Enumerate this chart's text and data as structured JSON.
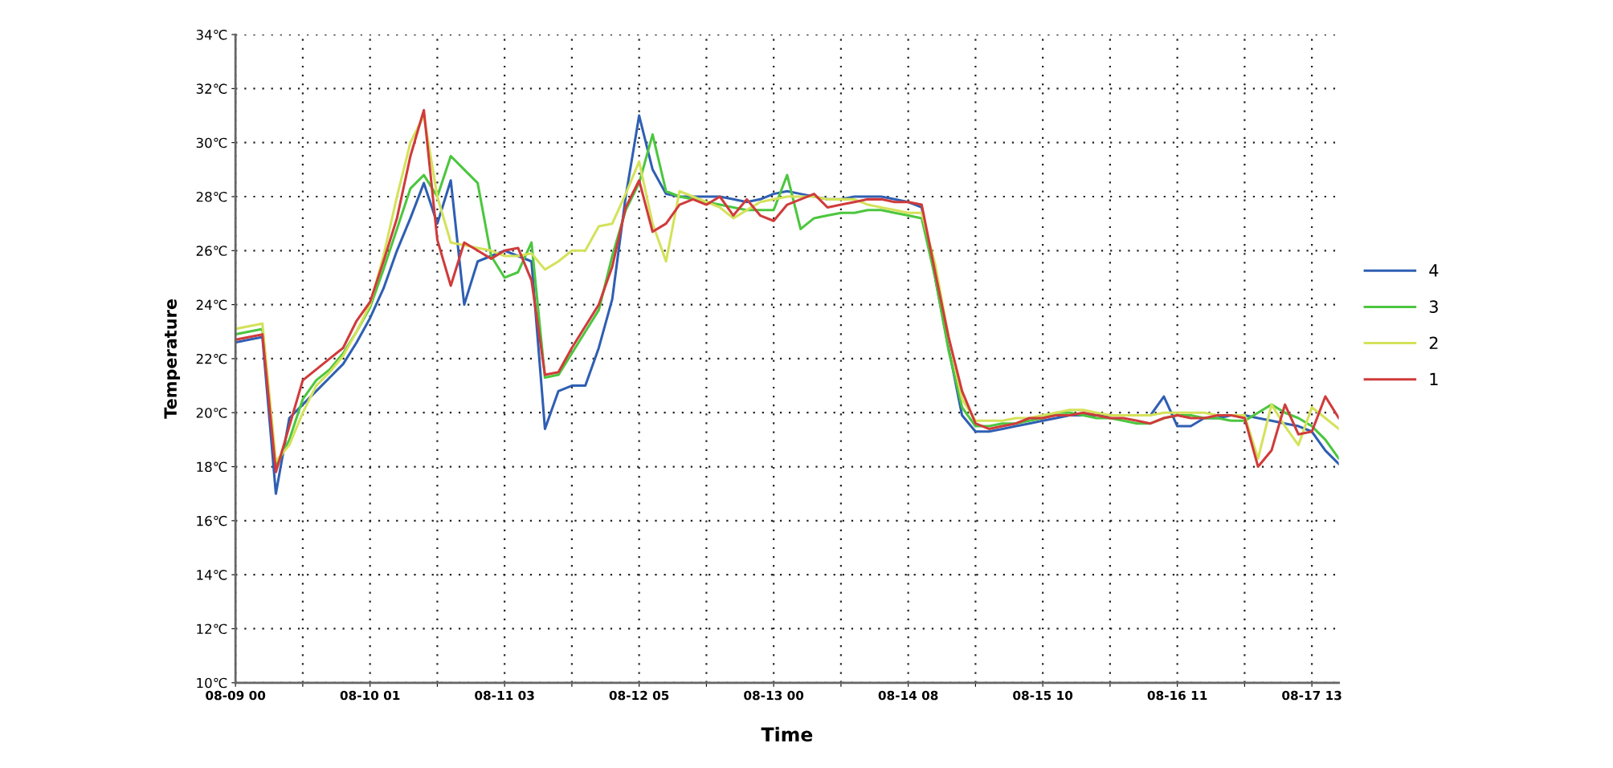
{
  "chart_data": {
    "type": "line",
    "xlabel": "Time",
    "ylabel": "Temperature",
    "categories": [
      "08-09 00",
      null,
      null,
      null,
      null,
      null,
      null,
      null,
      null,
      null,
      "08-10 01",
      null,
      null,
      null,
      null,
      null,
      null,
      null,
      null,
      null,
      "08-11 03",
      null,
      null,
      null,
      null,
      null,
      null,
      null,
      null,
      null,
      "08-12 05",
      null,
      null,
      null,
      null,
      null,
      null,
      null,
      null,
      null,
      "08-13 00",
      null,
      null,
      null,
      null,
      null,
      null,
      null,
      null,
      null,
      "08-14 08",
      null,
      null,
      null,
      null,
      null,
      null,
      null,
      null,
      null,
      "08-15 10",
      null,
      null,
      null,
      null,
      null,
      null,
      null,
      null,
      null,
      "08-16 11",
      null,
      null,
      null,
      null,
      null,
      null,
      null,
      null,
      null,
      "08-17 13",
      null,
      null
    ],
    "ylim": [
      10,
      34
    ],
    "yticks": [
      {
        "value": 10,
        "label": "10℃"
      },
      {
        "value": 12,
        "label": "12℃"
      },
      {
        "value": 14,
        "label": "14℃"
      },
      {
        "value": 16,
        "label": "16℃"
      },
      {
        "value": 18,
        "label": "18℃"
      },
      {
        "value": 20,
        "label": "20℃"
      },
      {
        "value": 22,
        "label": "22℃"
      },
      {
        "value": 24,
        "label": "24℃"
      },
      {
        "value": 26,
        "label": "26℃"
      },
      {
        "value": 28,
        "label": "28℃"
      },
      {
        "value": 30,
        "label": "30℃"
      },
      {
        "value": 32,
        "label": "32℃"
      },
      {
        "value": 34,
        "label": "34℃"
      }
    ],
    "grid": true,
    "legend": "right",
    "marker": "none",
    "line_style": "solid",
    "series": [
      {
        "name": "4",
        "color": "#2f5fb3",
        "values": [
          22.6,
          22.7,
          22.8,
          17.0,
          19.8,
          20.3,
          20.8,
          21.3,
          21.8,
          22.6,
          23.5,
          24.6,
          26.0,
          27.2,
          28.5,
          27.0,
          28.6,
          24.0,
          25.6,
          25.8,
          26.0,
          25.8,
          25.6,
          19.4,
          20.8,
          21.0,
          21.0,
          22.4,
          24.2,
          28.0,
          31.0,
          29.0,
          28.1,
          28.0,
          28.0,
          28.0,
          28.0,
          27.9,
          27.8,
          27.9,
          28.1,
          28.2,
          28.1,
          28.0,
          27.9,
          27.9,
          28.0,
          28.0,
          28.0,
          27.9,
          27.8,
          27.6,
          25.0,
          22.4,
          19.9,
          19.3,
          19.3,
          19.4,
          19.5,
          19.6,
          19.7,
          19.8,
          19.9,
          19.9,
          19.9,
          19.9,
          19.9,
          19.9,
          19.9,
          20.6,
          19.5,
          19.5,
          19.8,
          19.8,
          19.9,
          19.9,
          19.8,
          19.7,
          19.6,
          19.5,
          19.3,
          18.6,
          18.1
        ]
      },
      {
        "name": "3",
        "color": "#4cc63f",
        "values": [
          22.9,
          23.0,
          23.1,
          18.0,
          19.0,
          20.5,
          21.2,
          21.6,
          22.2,
          23.0,
          23.9,
          25.3,
          26.8,
          28.3,
          28.8,
          28.0,
          29.5,
          29.0,
          28.5,
          25.8,
          25.0,
          25.2,
          26.3,
          21.3,
          21.4,
          22.2,
          23.0,
          23.8,
          25.8,
          27.5,
          28.5,
          30.3,
          28.2,
          28.0,
          27.9,
          27.8,
          27.7,
          27.6,
          27.5,
          27.5,
          27.5,
          28.8,
          26.8,
          27.2,
          27.3,
          27.4,
          27.4,
          27.5,
          27.5,
          27.4,
          27.3,
          27.2,
          25.0,
          22.3,
          20.2,
          19.5,
          19.5,
          19.6,
          19.6,
          19.7,
          19.8,
          20.0,
          20.0,
          19.9,
          19.8,
          19.8,
          19.7,
          19.6,
          19.6,
          19.8,
          19.9,
          19.9,
          19.8,
          19.8,
          19.7,
          19.7,
          20.0,
          20.3,
          20.0,
          19.8,
          19.5,
          19.0,
          18.3
        ]
      },
      {
        "name": "2",
        "color": "#d4e25a",
        "values": [
          23.1,
          23.2,
          23.3,
          18.2,
          18.8,
          20.0,
          21.0,
          21.5,
          22.1,
          23.0,
          24.0,
          25.8,
          28.0,
          30.0,
          31.0,
          28.0,
          26.3,
          26.2,
          26.1,
          26.0,
          25.8,
          25.8,
          25.9,
          25.3,
          25.6,
          26.0,
          26.0,
          26.9,
          27.0,
          28.1,
          29.3,
          27.0,
          25.6,
          28.2,
          28.0,
          27.8,
          27.6,
          27.2,
          27.5,
          27.8,
          27.9,
          28.0,
          28.0,
          28.0,
          27.9,
          27.9,
          27.9,
          27.7,
          27.6,
          27.5,
          27.4,
          27.4,
          25.5,
          22.8,
          20.5,
          19.7,
          19.7,
          19.7,
          19.8,
          19.8,
          19.9,
          20.0,
          20.1,
          20.1,
          20.0,
          19.9,
          19.9,
          19.9,
          19.9,
          20.0,
          20.0,
          20.0,
          20.0,
          19.9,
          19.9,
          19.9,
          18.3,
          20.3,
          19.5,
          18.8,
          20.2,
          19.8,
          19.4
        ]
      },
      {
        "name": "1",
        "color": "#d03b3b",
        "values": [
          22.7,
          22.8,
          22.9,
          17.8,
          19.5,
          21.2,
          21.6,
          22.0,
          22.4,
          23.4,
          24.1,
          25.6,
          27.2,
          29.5,
          31.2,
          26.4,
          24.7,
          26.3,
          26.0,
          25.7,
          26.0,
          26.1,
          24.9,
          21.4,
          21.5,
          22.4,
          23.2,
          24.0,
          25.4,
          27.6,
          28.6,
          26.7,
          27.0,
          27.7,
          27.9,
          27.7,
          28.0,
          27.3,
          27.9,
          27.3,
          27.1,
          27.7,
          27.9,
          28.1,
          27.6,
          27.7,
          27.8,
          27.9,
          27.9,
          27.8,
          27.8,
          27.7,
          25.2,
          22.8,
          20.8,
          19.6,
          19.4,
          19.5,
          19.6,
          19.8,
          19.8,
          19.9,
          19.9,
          20.0,
          19.9,
          19.8,
          19.8,
          19.7,
          19.6,
          19.8,
          19.9,
          19.8,
          19.8,
          19.9,
          19.9,
          19.8,
          18.0,
          18.6,
          20.3,
          19.2,
          19.3,
          20.6,
          19.8
        ]
      }
    ]
  }
}
